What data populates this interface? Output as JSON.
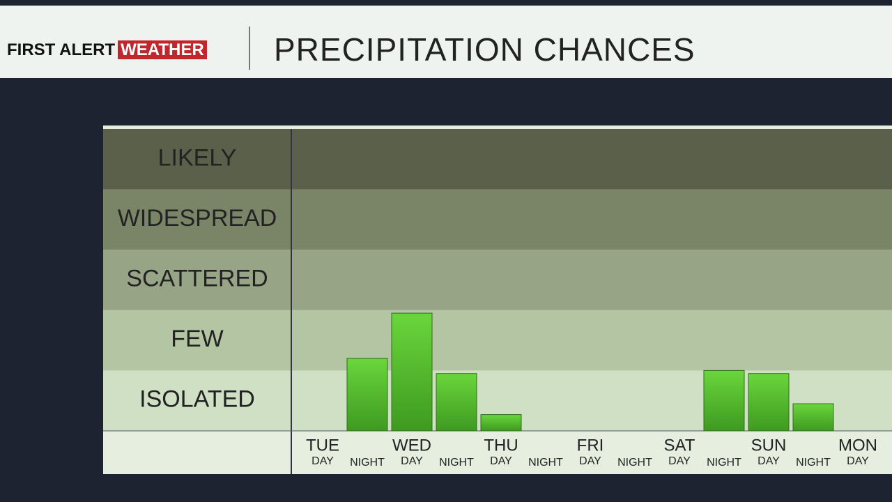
{
  "header": {
    "logo_part1": "FIRST ALERT",
    "logo_part2": "WEATHER"
  },
  "chart_data": {
    "type": "bar",
    "title": "PRECIPITATION CHANCES",
    "groups": [
      "TUE",
      "WED",
      "THU",
      "FRI",
      "SAT",
      "SUN",
      "MON"
    ],
    "categories": [
      "DAY",
      "NIGHT",
      "DAY",
      "NIGHT",
      "DAY",
      "NIGHT",
      "DAY",
      "NIGHT",
      "DAY",
      "NIGHT",
      "DAY",
      "NIGHT",
      "DAY"
    ],
    "values": [
      0,
      1.2,
      1.95,
      0.95,
      0.27,
      0,
      0,
      0,
      0,
      1.0,
      0.95,
      0.45,
      0
    ],
    "color": "#4fb82a",
    "ylim": [
      0,
      5
    ],
    "yticks": [
      {
        "value": 0.5,
        "label": "ISOLATED"
      },
      {
        "value": 1.5,
        "label": "FEW"
      },
      {
        "value": 2.5,
        "label": "SCATTERED"
      },
      {
        "value": 3.5,
        "label": "WIDESPREAD"
      },
      {
        "value": 4.5,
        "label": "LIKELY"
      }
    ],
    "band_colors": [
      "#cfe0c4",
      "#b4c5a4",
      "#97a586",
      "#7a8568",
      "#5b604a"
    ]
  }
}
